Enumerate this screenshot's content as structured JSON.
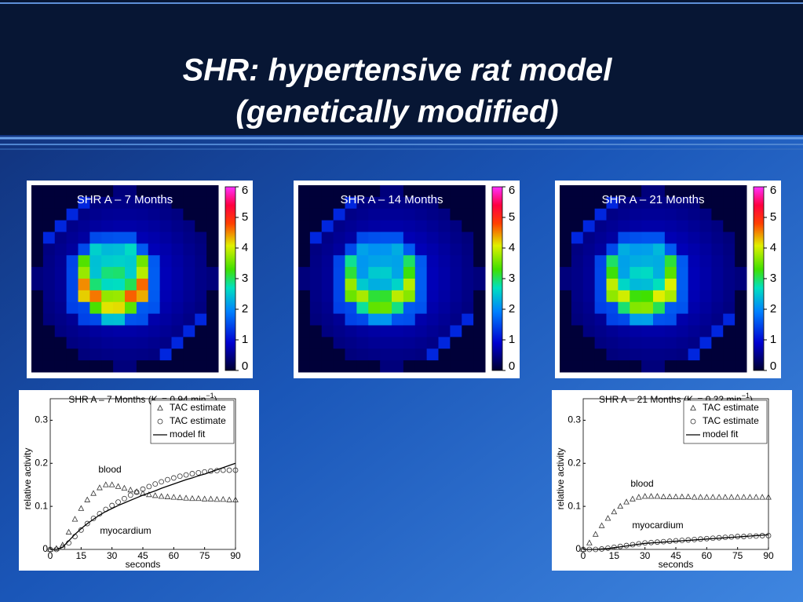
{
  "title_lines": [
    "SHR: hypertensive rat model",
    "(genetically modified)"
  ],
  "images": [
    {
      "title": "SHR A – 7 Months",
      "colorbar_ticks": [
        0,
        1,
        2,
        3,
        4,
        5,
        6
      ]
    },
    {
      "title": "SHR A – 14 Months",
      "colorbar_ticks": [
        0,
        1,
        2,
        3,
        4,
        5,
        6
      ]
    },
    {
      "title": "SHR A – 21 Months",
      "colorbar_ticks": [
        0,
        1,
        2,
        3,
        4,
        5,
        6
      ]
    }
  ],
  "chart_data": [
    {
      "type": "line",
      "title_parts": [
        "SHR A – 7 Months (K",
        "i",
        " = 0.94 min",
        "−1",
        ")"
      ],
      "x_label": "seconds",
      "y_label": "relative activity",
      "xlim": [
        0,
        90
      ],
      "xticks": [
        0,
        15,
        30,
        45,
        60,
        75,
        90
      ],
      "ylim": [
        0,
        0.35
      ],
      "yticks": [
        0,
        0.1,
        0.2,
        0.3
      ],
      "annotations": [
        "blood",
        "myocardium"
      ],
      "x": [
        0,
        3,
        6,
        9,
        12,
        15,
        18,
        21,
        24,
        27,
        30,
        33,
        36,
        39,
        42,
        45,
        48,
        51,
        54,
        57,
        60,
        63,
        66,
        69,
        72,
        75,
        78,
        81,
        84,
        87,
        90
      ],
      "series": [
        {
          "name": "TAC estimate",
          "marker": "triangle",
          "color": "#333333",
          "values": [
            0,
            0.002,
            0.01,
            0.04,
            0.07,
            0.095,
            0.115,
            0.13,
            0.143,
            0.15,
            0.15,
            0.146,
            0.142,
            0.138,
            0.134,
            0.13,
            0.127,
            0.125,
            0.123,
            0.122,
            0.121,
            0.12,
            0.119,
            0.118,
            0.118,
            0.117,
            0.117,
            0.116,
            0.116,
            0.115,
            0.115
          ]
        },
        {
          "name": "TAC estimate",
          "marker": "circle",
          "color": "#333333",
          "values": [
            0,
            0,
            0.005,
            0.015,
            0.03,
            0.045,
            0.06,
            0.072,
            0.083,
            0.093,
            0.102,
            0.11,
            0.118,
            0.126,
            0.133,
            0.14,
            0.146,
            0.152,
            0.157,
            0.162,
            0.166,
            0.17,
            0.173,
            0.176,
            0.178,
            0.18,
            0.182,
            0.183,
            0.184,
            0.184,
            0.184
          ]
        },
        {
          "name": "model fit",
          "marker": "line",
          "color": "#000000",
          "values": [
            0,
            0,
            0.005,
            0.02,
            0.035,
            0.048,
            0.06,
            0.07,
            0.08,
            0.088,
            0.095,
            0.102,
            0.108,
            0.114,
            0.12,
            0.126,
            0.131,
            0.136,
            0.142,
            0.147,
            0.152,
            0.157,
            0.162,
            0.166,
            0.171,
            0.175,
            0.18,
            0.185,
            0.19,
            0.195,
            0.2
          ]
        }
      ]
    },
    {
      "type": "line",
      "title_parts": [
        "SHR A – 21 Months (K",
        "i",
        " = 0.22 min",
        "−1",
        ")"
      ],
      "x_label": "seconds",
      "y_label": "relative activity",
      "xlim": [
        0,
        90
      ],
      "xticks": [
        0,
        15,
        30,
        45,
        60,
        75,
        90
      ],
      "ylim": [
        0,
        0.35
      ],
      "yticks": [
        0,
        0.1,
        0.2,
        0.3
      ],
      "annotations": [
        "blood",
        "myocardium"
      ],
      "x": [
        0,
        3,
        6,
        9,
        12,
        15,
        18,
        21,
        24,
        27,
        30,
        33,
        36,
        39,
        42,
        45,
        48,
        51,
        54,
        57,
        60,
        63,
        66,
        69,
        72,
        75,
        78,
        81,
        84,
        87,
        90
      ],
      "series": [
        {
          "name": "TAC estimate",
          "marker": "triangle",
          "color": "#333333",
          "values": [
            0,
            0.015,
            0.035,
            0.055,
            0.072,
            0.087,
            0.1,
            0.11,
            0.117,
            0.121,
            0.123,
            0.123,
            0.123,
            0.122,
            0.122,
            0.122,
            0.122,
            0.122,
            0.121,
            0.121,
            0.121,
            0.121,
            0.121,
            0.121,
            0.121,
            0.121,
            0.121,
            0.121,
            0.121,
            0.121,
            0.121
          ]
        },
        {
          "name": "TAC estimate",
          "marker": "circle",
          "color": "#333333",
          "values": [
            0,
            0,
            0,
            0.001,
            0.003,
            0.005,
            0.007,
            0.009,
            0.011,
            0.013,
            0.015,
            0.016,
            0.017,
            0.018,
            0.019,
            0.02,
            0.021,
            0.022,
            0.023,
            0.024,
            0.025,
            0.026,
            0.027,
            0.028,
            0.029,
            0.03,
            0.03,
            0.031,
            0.031,
            0.032,
            0.032
          ]
        },
        {
          "name": "model fit",
          "marker": "line",
          "color": "#000000",
          "values": [
            0,
            0,
            0,
            0.001,
            0.002,
            0.004,
            0.006,
            0.008,
            0.01,
            0.012,
            0.014,
            0.015,
            0.016,
            0.017,
            0.018,
            0.019,
            0.02,
            0.021,
            0.022,
            0.023,
            0.024,
            0.025,
            0.026,
            0.027,
            0.028,
            0.029,
            0.03,
            0.031,
            0.032,
            0.033,
            0.034
          ]
        }
      ]
    }
  ]
}
